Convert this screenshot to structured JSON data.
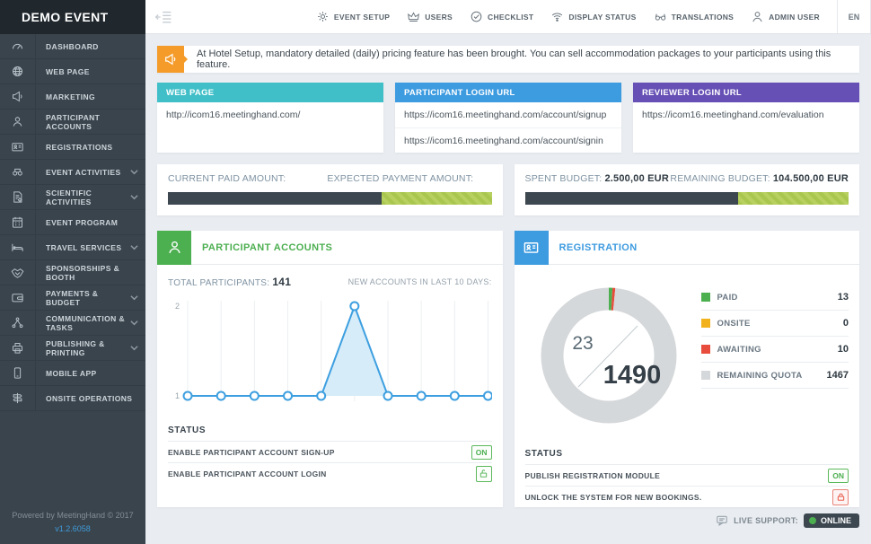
{
  "event_title": "DEMO EVENT",
  "topbar": {
    "menu": [
      {
        "label": "EVENT SETUP",
        "icon": "gear"
      },
      {
        "label": "USERS",
        "icon": "crown"
      },
      {
        "label": "CHECKLIST",
        "icon": "check-circle"
      },
      {
        "label": "DISPLAY STATUS",
        "icon": "wifi"
      },
      {
        "label": "TRANSLATIONS",
        "icon": "glasses"
      },
      {
        "label": "ADMIN USER",
        "icon": "person"
      }
    ],
    "language": "EN"
  },
  "sidebar": {
    "items": [
      {
        "label": "DASHBOARD",
        "icon": "gauge",
        "expandable": false
      },
      {
        "label": "WEB PAGE",
        "icon": "globe",
        "expandable": false
      },
      {
        "label": "MARKETING",
        "icon": "megaphone",
        "expandable": false
      },
      {
        "label": "PARTICIPANT ACCOUNTS",
        "icon": "user",
        "expandable": false
      },
      {
        "label": "REGISTRATIONS",
        "icon": "id-card",
        "expandable": false
      },
      {
        "label": "EVENT ACTIVITIES",
        "icon": "binoculars",
        "expandable": true
      },
      {
        "label": "SCIENTIFIC ACTIVITIES",
        "icon": "document",
        "expandable": true
      },
      {
        "label": "EVENT PROGRAM",
        "icon": "calendar",
        "expandable": false
      },
      {
        "label": "TRAVEL SERVICES",
        "icon": "bed",
        "expandable": true
      },
      {
        "label": "SPONSORSHIPS & BOOTH",
        "icon": "handshake",
        "expandable": false
      },
      {
        "label": "PAYMENTS & BUDGET",
        "icon": "wallet",
        "expandable": true
      },
      {
        "label": "COMMUNICATION & TASKS",
        "icon": "share-nodes",
        "expandable": true
      },
      {
        "label": "PUBLISHING & PRINTING",
        "icon": "printer",
        "expandable": true
      },
      {
        "label": "MOBILE APP",
        "icon": "smartphone",
        "expandable": false
      },
      {
        "label": "ONSITE OPERATIONS",
        "icon": "signpost",
        "expandable": false
      }
    ],
    "footer": {
      "powered": "Powered by MeetingHand © 2017",
      "version": "v1.2.6058"
    }
  },
  "notification": {
    "text": "At Hotel Setup, mandatory detailed (daily) pricing feature has been brought. You can sell accommodation packages to your participants using this feature.",
    "icon_color": "#f49b29"
  },
  "url_cards": [
    {
      "title": "WEB PAGE",
      "color": "#41bfc8",
      "urls": [
        "http://icom16.meetinghand.com/"
      ]
    },
    {
      "title": "PARTICIPANT LOGIN URL",
      "color": "#3d9be0",
      "urls": [
        "https://icom16.meetinghand.com/account/signup",
        "https://icom16.meetinghand.com/account/signin"
      ]
    },
    {
      "title": "REVIEWER LOGIN URL",
      "color": "#6650b5",
      "urls": [
        "https://icom16.meetinghand.com/evaluation"
      ]
    }
  ],
  "stat_cards": [
    {
      "left_label": "CURRENT PAID AMOUNT:",
      "left_value": "",
      "right_label": "EXPECTED PAYMENT AMOUNT:",
      "right_value": "",
      "bar": {
        "dark_pct": 66,
        "green_pct": 34,
        "dark_color": "#3c4750",
        "green_color": "#a9c64e"
      }
    },
    {
      "left_label": "SPENT BUDGET:",
      "left_value": "2.500,00 EUR",
      "right_label": "REMAINING BUDGET:",
      "right_value": "104.500,00 EUR",
      "bar": {
        "dark_pct": 66,
        "green_pct": 34,
        "dark_color": "#3c4750",
        "green_color": "#a9c64e"
      }
    }
  ],
  "participant_card": {
    "title": "PARTICIPANT ACCOUNTS",
    "total_label": "TOTAL PARTICIPANTS:",
    "total_value": "141",
    "chart_label": "NEW ACCOUNTS IN LAST 10 DAYS:",
    "status": {
      "heading": "STATUS",
      "rows": [
        {
          "label": "ENABLE PARTICIPANT ACCOUNT SIGN-UP",
          "state": "ON",
          "control": "on-badge"
        },
        {
          "label": "ENABLE PARTICIPANT ACCOUNT LOGIN",
          "state": "unlocked",
          "control": "unlock-icon"
        }
      ]
    }
  },
  "registration_card": {
    "title": "REGISTRATION",
    "status": {
      "heading": "STATUS",
      "rows": [
        {
          "label": "PUBLISH REGISTRATION MODULE",
          "state": "ON",
          "control": "on-badge"
        },
        {
          "label": "UNLOCK THE SYSTEM FOR NEW BOOKINGS.",
          "state": "locked",
          "control": "lock-icon"
        }
      ]
    }
  },
  "chart_data": [
    {
      "type": "line",
      "title": "NEW ACCOUNTS IN LAST 10 DAYS",
      "values": [
        1,
        1,
        1,
        1,
        1,
        2,
        1,
        1,
        1,
        1
      ],
      "ylim": [
        1,
        2
      ],
      "yticks": [
        1,
        2
      ],
      "grid": "vertical",
      "line_color": "#3d9fe0",
      "fill_color": "#d6ecf9",
      "point_style": "white circles with blue ring"
    },
    {
      "type": "donut",
      "title": "REGISTRATION",
      "center": {
        "current": "23",
        "total": "1490"
      },
      "segments": [
        {
          "label": "PAID",
          "value": 13,
          "color": "#4caf50"
        },
        {
          "label": "ONSITE",
          "value": 0,
          "color": "#f2b21d"
        },
        {
          "label": "AWAITING",
          "value": 10,
          "color": "#e74c3c"
        },
        {
          "label": "REMAINING QUOTA",
          "value": 1467,
          "color": "#d5d8da"
        }
      ],
      "legend_position": "right"
    }
  ],
  "footer_bar": {
    "live_support_label": "LIVE SUPPORT:",
    "live_support_status": "ONLINE"
  }
}
